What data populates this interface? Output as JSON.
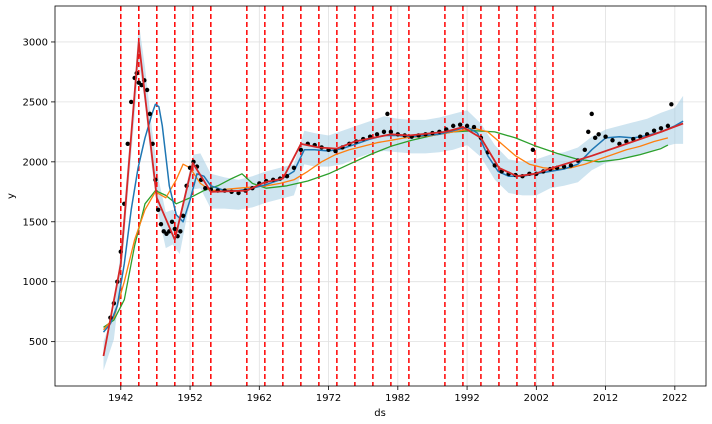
{
  "chart_data": {
    "type": "line",
    "title": "",
    "xlabel": "ds",
    "ylabel": "y",
    "xlim": [
      1932.5,
      2026.5
    ],
    "ylim": [
      130,
      3300
    ],
    "grid": true,
    "x_ticks": [
      1942,
      1952,
      1962,
      1972,
      1982,
      1992,
      2002,
      2012,
      2022
    ],
    "x_tick_labels": [
      "1942",
      "1952",
      "1962",
      "1972",
      "1982",
      "1992",
      "2002",
      "2012",
      "2022"
    ],
    "y_ticks": [
      500,
      1000,
      1500,
      2000,
      2500,
      3000
    ],
    "y_tick_labels": [
      "500",
      "1000",
      "1500",
      "2000",
      "2500",
      "3000"
    ],
    "changepoints": [
      1942.0,
      1944.6,
      1947.2,
      1949.8,
      1952.4,
      1955.0,
      1960.2,
      1962.8,
      1965.4,
      1968.0,
      1970.6,
      1973.2,
      1975.8,
      1978.4,
      1981.0,
      1983.6,
      1988.8,
      1991.4,
      1994.0,
      1996.6,
      1999.2,
      2001.8,
      2004.4
    ],
    "colors": {
      "observed": "#000000",
      "forecast": "#1f77b4",
      "uncertainty": "#a6cee3",
      "trend": "#d62728",
      "changepoint": "#ff0000",
      "model_2": "#ff7f0e",
      "model_3": "#2ca02c"
    },
    "series": [
      {
        "key": "observed",
        "kind": "scatter",
        "x": [
          1940.5,
          1941.0,
          1941.5,
          1942.0,
          1942.5,
          1943.0,
          1943.5,
          1944.0,
          1944.3,
          1944.6,
          1945.0,
          1945.4,
          1945.8,
          1946.2,
          1946.6,
          1947.0,
          1947.4,
          1947.8,
          1948.2,
          1948.6,
          1949.0,
          1949.4,
          1949.8,
          1950.2,
          1950.6,
          1951.0,
          1951.5,
          1952.0,
          1952.5,
          1953.0,
          1953.6,
          1954.2,
          1955.0,
          1956.0,
          1957.0,
          1958.0,
          1959.0,
          1960.0,
          1961.0,
          1962.0,
          1963.0,
          1964.0,
          1965.0,
          1966.0,
          1967.0,
          1968.0,
          1969.0,
          1970.0,
          1971.0,
          1972.0,
          1973.0,
          1974.0,
          1975.0,
          1976.0,
          1977.0,
          1978.0,
          1979.0,
          1980.0,
          1980.5,
          1981.0,
          1982.0,
          1983.0,
          1984.0,
          1985.0,
          1986.0,
          1987.0,
          1988.0,
          1989.0,
          1990.0,
          1991.0,
          1992.0,
          1993.0,
          1994.0,
          1995.0,
          1996.0,
          1997.0,
          1998.0,
          1999.0,
          2000.0,
          2001.0,
          2001.5,
          2002.0,
          2003.0,
          2004.0,
          2005.0,
          2006.0,
          2007.0,
          2008.0,
          2009.0,
          2009.5,
          2010.0,
          2010.5,
          2011.0,
          2012.0,
          2013.0,
          2014.0,
          2015.0,
          2016.0,
          2017.0,
          2018.0,
          2019.0,
          2020.0,
          2021.0,
          2021.5
        ],
        "y": [
          700,
          820,
          1000,
          1250,
          1650,
          2150,
          2500,
          2700,
          2740,
          2660,
          2640,
          2680,
          2600,
          2400,
          2150,
          1850,
          1600,
          1480,
          1420,
          1400,
          1420,
          1500,
          1440,
          1380,
          1420,
          1550,
          1800,
          1950,
          2000,
          1960,
          1850,
          1780,
          1770,
          1760,
          1760,
          1750,
          1740,
          1760,
          1780,
          1820,
          1840,
          1850,
          1860,
          1880,
          1950,
          2100,
          2150,
          2140,
          2120,
          2100,
          2090,
          2120,
          2150,
          2170,
          2190,
          2210,
          2230,
          2250,
          2400,
          2250,
          2230,
          2220,
          2210,
          2220,
          2230,
          2240,
          2250,
          2270,
          2300,
          2310,
          2300,
          2290,
          2200,
          2080,
          1970,
          1920,
          1900,
          1890,
          1880,
          1900,
          2100,
          1900,
          1920,
          1940,
          1950,
          1960,
          1970,
          2010,
          2100,
          2250,
          2400,
          2200,
          2230,
          2210,
          2180,
          2150,
          2170,
          2190,
          2210,
          2230,
          2260,
          2280,
          2300,
          2480
        ]
      },
      {
        "key": "uncertainty_band",
        "kind": "band",
        "x": [
          1939.5,
          1941.0,
          1942.0,
          1943.0,
          1944.0,
          1944.6,
          1945.5,
          1946.5,
          1947.5,
          1948.5,
          1949.5,
          1950.5,
          1951.5,
          1952.5,
          1953.5,
          1955.0,
          1957.0,
          1959.0,
          1961.0,
          1963.0,
          1965.0,
          1967.0,
          1968.5,
          1970.0,
          1972.0,
          1974.0,
          1976.0,
          1978.0,
          1980.0,
          1982.0,
          1984.0,
          1986.0,
          1988.0,
          1990.0,
          1992.0,
          1994.0,
          1996.0,
          1998.0,
          2000.0,
          2002.0,
          2004.0,
          2006.0,
          2008.0,
          2010.0,
          2012.0,
          2014.0,
          2016.0,
          2018.0,
          2020.0,
          2022.0,
          2023.2
        ],
        "lower": [
          260,
          520,
          1020,
          1720,
          2380,
          2830,
          2480,
          1940,
          1540,
          1280,
          1310,
          1230,
          1530,
          1770,
          1780,
          1610,
          1610,
          1600,
          1620,
          1660,
          1690,
          1720,
          1980,
          1960,
          1960,
          1980,
          2030,
          2070,
          2090,
          2080,
          2070,
          2070,
          2080,
          2100,
          2140,
          2040,
          1850,
          1740,
          1720,
          1720,
          1780,
          1800,
          1830,
          1930,
          1990,
          2020,
          2050,
          2080,
          2120,
          2150,
          2150
        ],
        "upper": [
          500,
          760,
          1270,
          1990,
          2650,
          3160,
          2790,
          2270,
          1840,
          1580,
          1600,
          1530,
          1820,
          2060,
          2070,
          1900,
          1870,
          1850,
          1880,
          1920,
          1950,
          1980,
          2260,
          2240,
          2220,
          2260,
          2300,
          2340,
          2380,
          2360,
          2350,
          2350,
          2370,
          2400,
          2430,
          2320,
          2140,
          2020,
          2000,
          2020,
          2060,
          2080,
          2120,
          2210,
          2270,
          2300,
          2330,
          2360,
          2410,
          2450,
          2550
        ]
      },
      {
        "key": "forecast",
        "kind": "line",
        "x": [
          1939.5,
          1940.5,
          1941.5,
          1942.5,
          1943.5,
          1944.5,
          1945.5,
          1946.5,
          1947.0,
          1947.5,
          1948.0,
          1949.0,
          1950.0,
          1951.0,
          1952.0,
          1953.0,
          1954.0,
          1955.0,
          1957.0,
          1959.0,
          1961.0,
          1963.0,
          1965.0,
          1967.0,
          1968.5,
          1970.0,
          1972.0,
          1974.0,
          1976.0,
          1978.0,
          1980.0,
          1982.0,
          1984.0,
          1986.0,
          1988.0,
          1990.0,
          1992.0,
          1993.5,
          1995.0,
          1996.5,
          1998.0,
          2000.0,
          2002.0,
          2004.0,
          2006.0,
          2008.0,
          2010.0,
          2012.0,
          2014.0,
          2016.0,
          2018.0,
          2020.0,
          2022.0,
          2023.2
        ],
        "y": [
          580,
          650,
          800,
          1150,
          1600,
          1950,
          2200,
          2400,
          2480,
          2460,
          2300,
          1800,
          1560,
          1500,
          1680,
          1900,
          1880,
          1800,
          1760,
          1760,
          1780,
          1810,
          1850,
          1920,
          2100,
          2100,
          2090,
          2110,
          2150,
          2190,
          2220,
          2220,
          2210,
          2220,
          2230,
          2260,
          2290,
          2240,
          2050,
          1920,
          1880,
          1880,
          1900,
          1920,
          1940,
          1980,
          2100,
          2200,
          2210,
          2200,
          2220,
          2250,
          2300,
          2340
        ]
      },
      {
        "key": "model_2",
        "kind": "line",
        "x": [
          1939.5,
          1941.0,
          1942.5,
          1944.0,
          1945.5,
          1947.0,
          1948.5,
          1950.0,
          1951.0,
          1952.0,
          1953.5,
          1955.0,
          1957.0,
          1959.0,
          1961.0,
          1963.0,
          1965.0,
          1967.0,
          1969.0,
          1971.0,
          1973.0,
          1975.0,
          1977.0,
          1979.0,
          1981.0,
          1983.0,
          1985.0,
          1987.0,
          1989.0,
          1991.0,
          1993.0,
          1995.0,
          1997.0,
          1999.0,
          2001.0,
          2003.0,
          2005.0,
          2007.0,
          2009.0,
          2011.0,
          2013.0,
          2015.0,
          2017.0,
          2019.0,
          2021.0
        ],
        "y": [
          600,
          700,
          1000,
          1350,
          1600,
          1750,
          1700,
          1850,
          1980,
          1950,
          1820,
          1760,
          1770,
          1780,
          1790,
          1800,
          1820,
          1850,
          1920,
          2000,
          2060,
          2100,
          2130,
          2160,
          2180,
          2200,
          2210,
          2220,
          2240,
          2260,
          2280,
          2250,
          2150,
          2050,
          1980,
          1950,
          1940,
          1950,
          1980,
          2020,
          2060,
          2100,
          2130,
          2170,
          2200
        ]
      },
      {
        "key": "model_3",
        "kind": "line",
        "x": [
          1939.5,
          1941.0,
          1942.5,
          1944.0,
          1945.5,
          1947.0,
          1948.5,
          1950.0,
          1952.0,
          1954.0,
          1956.0,
          1958.0,
          1959.5,
          1961.0,
          1963.0,
          1966.0,
          1969.0,
          1972.0,
          1975.0,
          1978.0,
          1981.0,
          1984.0,
          1987.0,
          1990.0,
          1993.0,
          1996.0,
          1999.0,
          2002.0,
          2005.0,
          2008.0,
          2011.0,
          2014.0,
          2017.0,
          2020.0,
          2021.0
        ],
        "y": [
          620,
          680,
          850,
          1300,
          1650,
          1760,
          1720,
          1650,
          1700,
          1760,
          1800,
          1860,
          1900,
          1820,
          1780,
          1800,
          1840,
          1900,
          1980,
          2060,
          2130,
          2180,
          2220,
          2250,
          2260,
          2250,
          2200,
          2130,
          2070,
          2020,
          2000,
          2020,
          2060,
          2110,
          2140
        ]
      },
      {
        "key": "trend",
        "kind": "line",
        "x": [
          1939.5,
          1942.0,
          1944.6,
          1947.2,
          1949.8,
          1952.4,
          1955.0,
          1960.2,
          1962.8,
          1965.4,
          1968.0,
          1970.6,
          1973.2,
          1975.8,
          1978.4,
          1981.0,
          1983.6,
          1988.8,
          1991.4,
          1994.0,
          1996.6,
          1999.2,
          2001.8,
          2004.4,
          2010.0,
          2015.0,
          2020.0,
          2023.2
        ],
        "y": [
          380,
          1150,
          3000,
          1700,
          1350,
          1990,
          1750,
          1760,
          1830,
          1860,
          2150,
          2120,
          2110,
          2170,
          2200,
          2230,
          2220,
          2250,
          2290,
          2200,
          1950,
          1880,
          1900,
          1950,
          2050,
          2150,
          2250,
          2320
        ]
      }
    ]
  }
}
